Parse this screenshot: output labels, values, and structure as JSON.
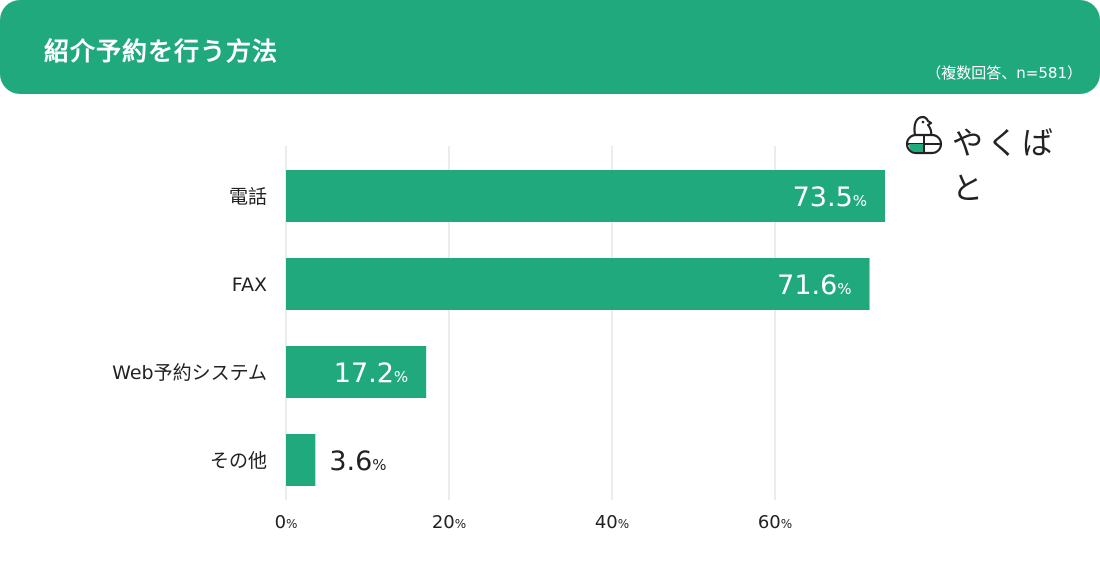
{
  "header": {
    "title": "紹介予約を行う方法",
    "note": "（複数回答、n=581）",
    "color": "#21a97e"
  },
  "logo": {
    "text": "やくばと",
    "icon": "bird-pill-icon"
  },
  "chart_data": {
    "type": "bar",
    "orientation": "horizontal",
    "categories": [
      "電話",
      "FAX",
      "Web予約システム",
      "その他"
    ],
    "values": [
      73.5,
      71.6,
      17.2,
      3.6
    ],
    "value_unit": "%",
    "xticks": [
      0,
      20,
      40,
      60
    ],
    "xtick_unit": "%",
    "xlim": [
      0,
      80
    ],
    "grid": true,
    "bar_color": "#21a97e",
    "title": "紹介予約を行う方法",
    "xlabel": "",
    "ylabel": ""
  }
}
